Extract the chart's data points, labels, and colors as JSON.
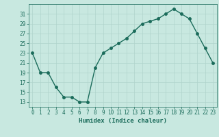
{
  "x": [
    0,
    1,
    2,
    3,
    4,
    5,
    6,
    7,
    8,
    9,
    10,
    11,
    12,
    13,
    14,
    15,
    16,
    17,
    18,
    19,
    20,
    21,
    22,
    23
  ],
  "y": [
    23,
    19,
    19,
    16,
    14,
    14,
    13,
    13,
    20,
    23,
    24,
    25,
    26,
    27.5,
    29,
    29.5,
    30,
    31,
    32,
    31,
    30,
    27,
    24,
    21
  ],
  "line_color": "#1a6b5a",
  "marker_color": "#1a6b5a",
  "bg_color": "#c8e8e0",
  "grid_color": "#b0d4cc",
  "xlabel": "Humidex (Indice chaleur)",
  "xlim": [
    -0.5,
    23.5
  ],
  "ylim": [
    12,
    33
  ],
  "yticks": [
    13,
    15,
    17,
    19,
    21,
    23,
    25,
    27,
    29,
    31
  ],
  "xticks": [
    0,
    1,
    2,
    3,
    4,
    5,
    6,
    7,
    8,
    9,
    10,
    11,
    12,
    13,
    14,
    15,
    16,
    17,
    18,
    19,
    20,
    21,
    22,
    23
  ],
  "marker_size": 2.5,
  "line_width": 1.0,
  "tick_fontsize": 5.5,
  "xlabel_fontsize": 6.5
}
